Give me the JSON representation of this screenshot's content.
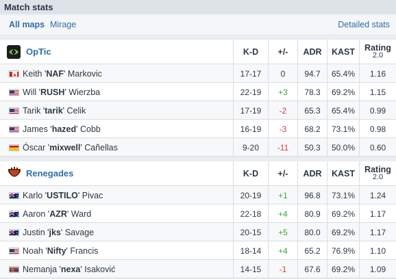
{
  "header": {
    "title": "Match stats"
  },
  "tabs": {
    "all_maps": "All maps",
    "mirage": "Mirage",
    "detailed": "Detailed stats"
  },
  "columns": {
    "kd": "K-D",
    "pm": "+/-",
    "adr": "ADR",
    "kast": "KAST",
    "rating": "Rating",
    "rating_sub": "2.0"
  },
  "teams": [
    {
      "name": "OpTic",
      "logo": "optic-logo",
      "players": [
        {
          "flag": "CA",
          "first": "Keith '",
          "nick": "NAF",
          "last": "' Markovic",
          "kd": "17-17",
          "pm": "0",
          "adr": "94.7",
          "kast": "65.4%",
          "rating": "1.16"
        },
        {
          "flag": "US",
          "first": "Will '",
          "nick": "RUSH",
          "last": "' Wierzba",
          "kd": "22-19",
          "pm": "+3",
          "adr": "78.3",
          "kast": "69.2%",
          "rating": "1.15"
        },
        {
          "flag": "US",
          "first": "Tarik '",
          "nick": "tarik",
          "last": "' Celik",
          "kd": "17-19",
          "pm": "-2",
          "adr": "65.3",
          "kast": "65.4%",
          "rating": "0.99"
        },
        {
          "flag": "US",
          "first": "James '",
          "nick": "hazed",
          "last": "' Cobb",
          "kd": "16-19",
          "pm": "-3",
          "adr": "68.2",
          "kast": "73.1%",
          "rating": "0.98"
        },
        {
          "flag": "ES",
          "first": "Óscar '",
          "nick": "mixwell",
          "last": "' Cañellas",
          "kd": "9-20",
          "pm": "-11",
          "adr": "50.3",
          "kast": "50.0%",
          "rating": "0.60"
        }
      ]
    },
    {
      "name": "Renegades",
      "logo": "renegades-logo",
      "players": [
        {
          "flag": "AU",
          "first": "Karlo '",
          "nick": "USTILO",
          "last": "' Pivac",
          "kd": "20-19",
          "pm": "+1",
          "adr": "96.8",
          "kast": "73.1%",
          "rating": "1.24"
        },
        {
          "flag": "AU",
          "first": "Aaron '",
          "nick": "AZR",
          "last": "' Ward",
          "kd": "22-18",
          "pm": "+4",
          "adr": "80.9",
          "kast": "69.2%",
          "rating": "1.17"
        },
        {
          "flag": "AU",
          "first": "Justin '",
          "nick": "jks",
          "last": "' Savage",
          "kd": "20-15",
          "pm": "+5",
          "adr": "80.0",
          "kast": "69.2%",
          "rating": "1.17"
        },
        {
          "flag": "US",
          "first": "Noah '",
          "nick": "Nifty",
          "last": "' Francis",
          "kd": "18-14",
          "pm": "+4",
          "adr": "65.2",
          "kast": "76.9%",
          "rating": "1.10"
        },
        {
          "flag": "RS",
          "first": "Nemanja '",
          "nick": "nexa",
          "last": "' Isaković",
          "kd": "14-15",
          "pm": "-1",
          "adr": "67.6",
          "kast": "69.2%",
          "rating": "1.09"
        }
      ]
    }
  ]
}
